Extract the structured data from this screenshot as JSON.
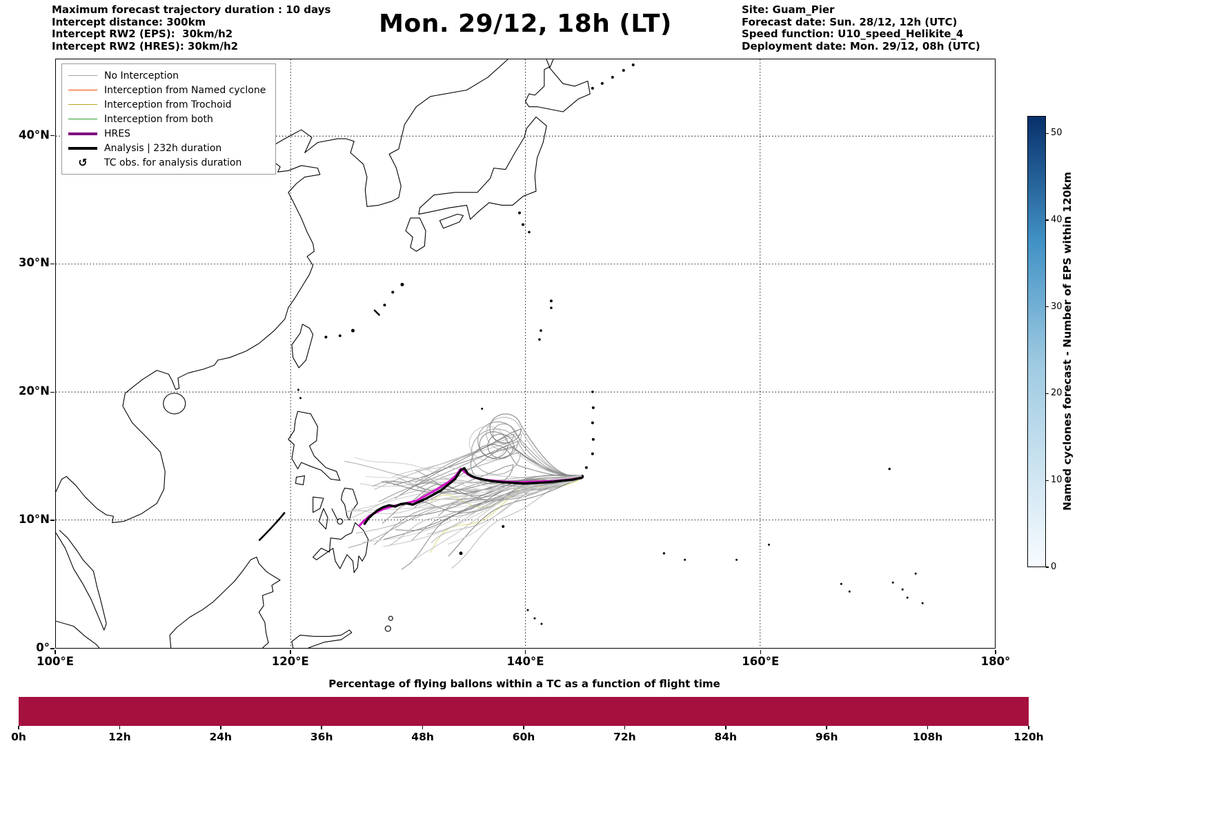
{
  "header": {
    "left_lines": [
      "Maximum forecast trajectory duration : 10 days",
      "Intercept distance: 300km",
      "Intercept RW2 (EPS):  30km/h2",
      "Intercept RW2 (HRES): 30km/h2"
    ],
    "title": "Mon. 29/12, 18h (LT)",
    "right_lines": [
      "Site: Guam_Pier",
      "Forecast date: Sun. 28/12, 12h (UTC)",
      "Speed function: U10_speed_Helikite_4",
      "Deployment date: Mon. 29/12, 08h (UTC)"
    ]
  },
  "legend": {
    "items": [
      {
        "label": "No Interception",
        "color": "#a0a0a0",
        "lw": 1.5
      },
      {
        "label": "Interception from Named cyclone",
        "color": "#ff4500",
        "lw": 1.5
      },
      {
        "label": "Interception from Trochoid",
        "color": "#b3a61c",
        "lw": 1.5
      },
      {
        "label": "Interception from both",
        "color": "#2e9b2e",
        "lw": 1.5
      },
      {
        "label": "HRES",
        "color": "#800080",
        "lw": 4
      },
      {
        "label": "Analysis | 232h duration",
        "color": "#000000",
        "lw": 4
      },
      {
        "label": "TC obs. for analysis duration",
        "symbol": "↺"
      }
    ]
  },
  "axes": {
    "x_ticks": [
      {
        "value": 100,
        "label": "100°E"
      },
      {
        "value": 120,
        "label": "120°E"
      },
      {
        "value": 140,
        "label": "140°E"
      },
      {
        "value": 160,
        "label": "160°E"
      },
      {
        "value": 180,
        "label": "180°"
      }
    ],
    "y_ticks": [
      {
        "value": 0,
        "label": "0°"
      },
      {
        "value": 10,
        "label": "10°N"
      },
      {
        "value": 20,
        "label": "20°N"
      },
      {
        "value": 30,
        "label": "30°N"
      },
      {
        "value": 40,
        "label": "40°N"
      }
    ]
  },
  "colorbar": {
    "label": "Named cyclones forecast - Number of EPS within 120km",
    "ticks": [
      0,
      10,
      20,
      30,
      40,
      50
    ],
    "vmax": 52,
    "color_low": "#f7fbff",
    "color_mid1": "#9ecae1",
    "color_mid2": "#4292c6",
    "color_high": "#08306b"
  },
  "bottom_chart": {
    "title": "Percentage of flying ballons within a TC as a function of flight time",
    "ticks": [
      "0h",
      "12h",
      "24h",
      "36h",
      "48h",
      "60h",
      "72h",
      "84h",
      "96h",
      "108h",
      "120h"
    ],
    "bar_color": "#a5103f",
    "value_percent": 100
  },
  "chart_data": [
    {
      "type": "trajectory-map",
      "extent": {
        "lon": [
          100,
          180
        ],
        "lat": [
          0,
          46
        ]
      },
      "gridlines": {
        "lon": [
          120,
          140,
          160
        ],
        "lat": [
          10,
          20,
          30,
          40
        ]
      },
      "launch_site": {
        "name": "Guam_Pier",
        "lon": 144.8,
        "lat": 13.35
      },
      "hres_color": "#d316c9",
      "analysis_color": "#000000",
      "analysis_track": [
        [
          126.3,
          9.7
        ],
        [
          126.6,
          10.1
        ],
        [
          127.0,
          10.45
        ],
        [
          127.4,
          10.75
        ],
        [
          127.9,
          11.0
        ],
        [
          128.4,
          11.15
        ],
        [
          128.9,
          11.05
        ],
        [
          129.4,
          11.25
        ],
        [
          129.9,
          11.3
        ],
        [
          130.4,
          11.2
        ],
        [
          131.0,
          11.45
        ],
        [
          131.6,
          11.7
        ],
        [
          132.2,
          12.0
        ],
        [
          132.8,
          12.3
        ],
        [
          133.4,
          12.75
        ],
        [
          134.0,
          13.2
        ],
        [
          134.5,
          13.9
        ],
        [
          134.8,
          14.05
        ],
        [
          135.1,
          13.6
        ],
        [
          135.6,
          13.35
        ],
        [
          136.2,
          13.2
        ],
        [
          137.0,
          13.05
        ],
        [
          138.0,
          12.95
        ],
        [
          139.0,
          12.9
        ],
        [
          140.0,
          12.85
        ],
        [
          141.0,
          12.9
        ],
        [
          142.0,
          12.95
        ],
        [
          143.0,
          13.05
        ],
        [
          144.0,
          13.15
        ],
        [
          144.8,
          13.3
        ]
      ],
      "hres_track": [
        [
          125.85,
          9.55
        ],
        [
          126.2,
          9.9
        ],
        [
          126.7,
          10.3
        ],
        [
          127.3,
          10.6
        ],
        [
          127.9,
          10.85
        ],
        [
          128.6,
          11.05
        ],
        [
          129.3,
          11.2
        ],
        [
          130.0,
          11.35
        ],
        [
          130.7,
          11.5
        ],
        [
          131.4,
          11.85
        ],
        [
          132.1,
          12.2
        ],
        [
          132.8,
          12.6
        ],
        [
          133.5,
          13.0
        ],
        [
          134.1,
          13.5
        ],
        [
          134.5,
          14.0
        ],
        [
          134.9,
          13.7
        ],
        [
          135.4,
          13.4
        ],
        [
          136.1,
          13.2
        ],
        [
          137.0,
          13.1
        ],
        [
          138.2,
          13.0
        ],
        [
          139.5,
          12.95
        ],
        [
          141.0,
          13.0
        ],
        [
          142.5,
          13.05
        ],
        [
          143.7,
          13.15
        ],
        [
          144.8,
          13.3
        ]
      ],
      "ensemble": {
        "count": 50,
        "loop_count": 9,
        "seed": 11,
        "origin": [
          144.8,
          13.35
        ],
        "end_lon_min": 124.5,
        "end_lon_max": 132.5,
        "gray_min": 115,
        "gray_range": 100,
        "trochoid_members": [
          12,
          17
        ],
        "trochoid_color": "#ded874"
      }
    },
    {
      "type": "bar",
      "title": "Percentage of flying ballons within a TC as a function of flight time",
      "categories": [
        "0h",
        "12h",
        "24h",
        "36h",
        "48h",
        "60h",
        "72h",
        "84h",
        "96h",
        "108h",
        "120h"
      ],
      "values": [
        100,
        100,
        100,
        100,
        100,
        100,
        100,
        100,
        100,
        100,
        100
      ],
      "ylim": [
        0,
        100
      ]
    }
  ]
}
